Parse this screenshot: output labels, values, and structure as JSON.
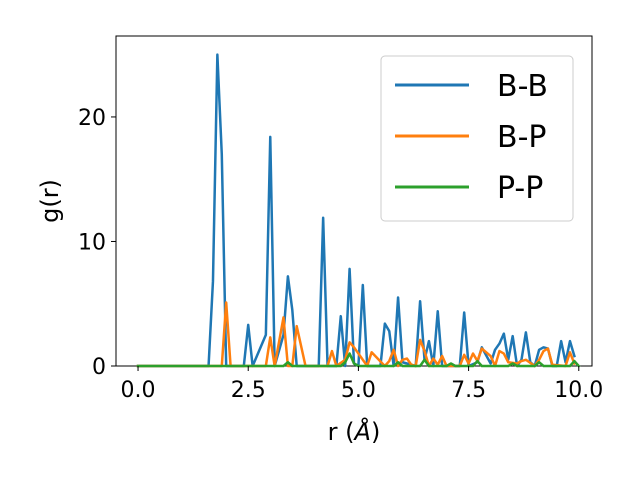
{
  "chart_data": {
    "type": "line",
    "title": "",
    "xlabel": "r (Å)",
    "ylabel": "g(r)",
    "xlim": [
      -0.5,
      10.3
    ],
    "ylim": [
      0,
      26.5
    ],
    "xticks": [
      0.0,
      2.5,
      5.0,
      7.5,
      10.0
    ],
    "xtick_labels": [
      "0.0",
      "2.5",
      "5.0",
      "7.5",
      "10.0"
    ],
    "yticks": [
      0,
      10,
      20
    ],
    "ytick_labels": [
      "0",
      "10",
      "20"
    ],
    "grid": false,
    "legend_position": "top-right",
    "series": [
      {
        "name": "B-B",
        "color": "#1f77b4",
        "x": [
          0.0,
          1.6,
          1.7,
          1.8,
          1.9,
          2.0,
          2.4,
          2.5,
          2.6,
          2.9,
          3.0,
          3.1,
          3.3,
          3.4,
          3.5,
          3.6,
          3.7,
          4.1,
          4.2,
          4.3,
          4.5,
          4.6,
          4.7,
          4.8,
          4.9,
          5.0,
          5.1,
          5.2,
          5.5,
          5.6,
          5.7,
          5.8,
          5.9,
          6.0,
          6.3,
          6.4,
          6.5,
          6.6,
          6.7,
          6.8,
          6.9,
          7.3,
          7.4,
          7.5,
          7.7,
          7.8,
          8.0,
          8.1,
          8.2,
          8.3,
          8.4,
          8.5,
          8.6,
          8.7,
          8.8,
          8.9,
          9.0,
          9.1,
          9.2,
          9.3,
          9.4,
          9.5,
          9.6,
          9.7,
          9.8,
          9.9
        ],
        "values": [
          0,
          0,
          6.8,
          25.0,
          17.0,
          0,
          0,
          3.3,
          0,
          2.5,
          18.4,
          0,
          2.5,
          7.2,
          4.5,
          0,
          0,
          0,
          11.9,
          0,
          0,
          4.0,
          0,
          7.8,
          0.2,
          0,
          6.5,
          0,
          0,
          3.4,
          2.8,
          0,
          5.5,
          0.3,
          0,
          5.2,
          0.5,
          2.0,
          0,
          4.4,
          0,
          0,
          4.3,
          0,
          0.3,
          1.5,
          0.2,
          1.3,
          1.8,
          2.6,
          0.5,
          2.4,
          0,
          0.5,
          2.7,
          0.3,
          0,
          1.3,
          1.5,
          1.4,
          0,
          0,
          2.0,
          0.3,
          2.0,
          0.8
        ]
      },
      {
        "name": "B-P",
        "color": "#ff7f0e",
        "x": [
          0.0,
          1.9,
          2.0,
          2.1,
          2.9,
          3.0,
          3.1,
          3.3,
          3.4,
          3.5,
          3.6,
          3.8,
          4.3,
          4.4,
          4.5,
          4.7,
          4.8,
          4.9,
          5.2,
          5.3,
          5.6,
          5.7,
          5.8,
          5.9,
          6.0,
          6.1,
          6.2,
          6.3,
          6.4,
          6.5,
          6.6,
          6.7,
          6.8,
          6.9,
          7.0,
          7.3,
          7.4,
          7.5,
          7.6,
          7.7,
          7.8,
          8.0,
          8.1,
          8.2,
          8.3,
          8.4,
          8.6,
          8.7,
          8.8,
          9.0,
          9.1,
          9.2,
          9.3,
          9.4,
          9.7,
          9.8,
          9.9
        ],
        "values": [
          0,
          0,
          5.1,
          0,
          0,
          2.3,
          0,
          3.9,
          0,
          0,
          3.2,
          0,
          0,
          1.2,
          0,
          0.5,
          1.9,
          1.5,
          0,
          1.1,
          0,
          0.4,
          1.3,
          0,
          0.5,
          0.6,
          0.1,
          0,
          2.1,
          1.2,
          0,
          0.6,
          0.1,
          0.8,
          0,
          0,
          0.9,
          0.2,
          1.0,
          0.4,
          1.4,
          0.8,
          0,
          1.2,
          1.0,
          0.3,
          0.2,
          0.4,
          0.5,
          0,
          0.5,
          1.2,
          1.4,
          0.1,
          0,
          1.1,
          0.2
        ]
      },
      {
        "name": "P-P",
        "color": "#2ca02c",
        "x": [
          0.0,
          2.0,
          3.3,
          3.4,
          3.5,
          4.6,
          4.7,
          4.8,
          4.9,
          5.0,
          5.8,
          5.9,
          6.0,
          6.4,
          6.5,
          6.6,
          7.0,
          7.1,
          7.2,
          7.6,
          7.7,
          7.8,
          8.4,
          8.5,
          8.6,
          9.0,
          9.1,
          9.2,
          9.8,
          9.9,
          10.0
        ],
        "values": [
          0,
          0,
          0,
          0.3,
          0,
          0,
          0.3,
          1.0,
          0.2,
          0,
          0,
          0.3,
          0,
          0,
          0.5,
          0,
          0,
          0.2,
          0,
          0,
          0.4,
          0,
          0,
          0.2,
          0,
          0,
          0.3,
          0,
          0,
          0.4,
          0
        ]
      }
    ]
  }
}
